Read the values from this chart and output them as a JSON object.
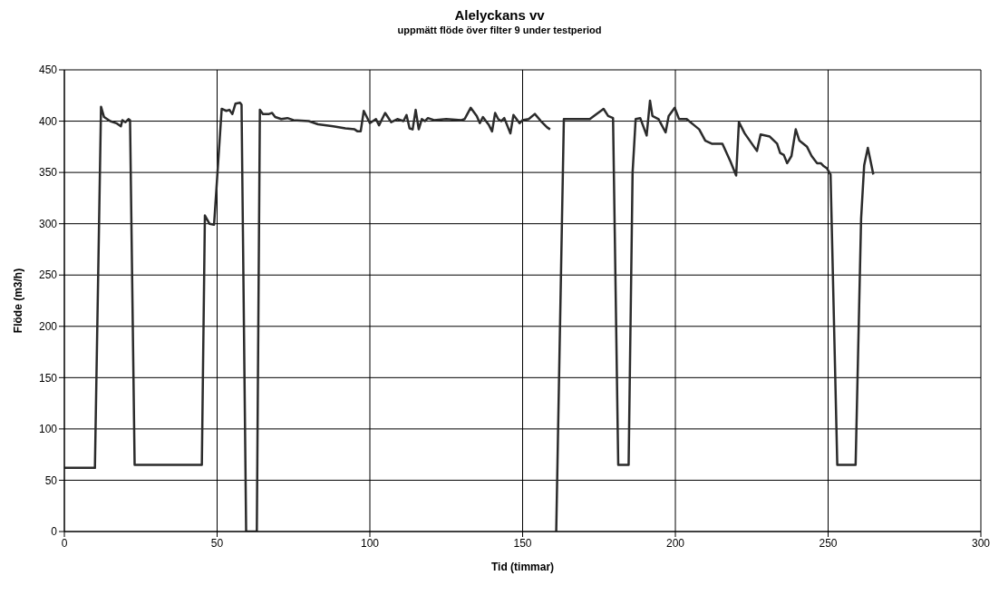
{
  "chart_data": {
    "type": "line",
    "title": "Alelyckans vv",
    "subtitle": "uppmätt flöde över filter 9 under testperiod",
    "xlabel": "Tid (timmar)",
    "ylabel": "Flöde (m3/h)",
    "xlim": [
      0,
      300
    ],
    "xticks": [
      0,
      50,
      100,
      150,
      200,
      250,
      300
    ],
    "ylim": [
      0,
      450
    ],
    "yticks": [
      0,
      50,
      100,
      150,
      200,
      250,
      300,
      350,
      400,
      450
    ],
    "grid": true,
    "series": [
      {
        "color": "#2b2b2b",
        "x": [
          0,
          10,
          12,
          13,
          15,
          17,
          18.5,
          19,
          20,
          21,
          21.5,
          23,
          45,
          46,
          47.5,
          49,
          51.5,
          53,
          54,
          55,
          56,
          57.5,
          58,
          59.5,
          63,
          64,
          65,
          67,
          68,
          69,
          71,
          73,
          75,
          80,
          83,
          88,
          92,
          95,
          96,
          97,
          98,
          100,
          102,
          103,
          105,
          107,
          109,
          111,
          112,
          113,
          114,
          115,
          116,
          117,
          118,
          119,
          121,
          125,
          130,
          131,
          133,
          135,
          136,
          137,
          139,
          140,
          141,
          142,
          143,
          144,
          146,
          147,
          149,
          150,
          152,
          154,
          156,
          158,
          159
        ],
        "values": [
          62,
          62,
          414,
          404,
          400,
          398,
          395,
          401,
          399,
          402,
          401,
          65,
          65,
          308,
          300,
          299,
          412,
          410,
          411,
          407,
          417,
          418,
          416,
          0,
          0,
          411,
          407,
          407,
          408,
          404,
          402,
          403,
          401,
          400,
          397,
          395,
          393,
          392,
          390,
          390,
          410,
          398,
          402,
          396,
          408,
          399,
          402,
          400,
          406,
          393,
          392,
          411,
          392,
          402,
          400,
          403,
          401,
          402,
          401,
          402,
          413,
          405,
          398,
          404,
          396,
          390,
          408,
          402,
          400,
          403,
          388,
          406,
          398,
          401,
          402,
          407,
          400,
          394,
          392
        ]
      },
      {
        "color": "#2b2b2b",
        "x": [
          161,
          163.5,
          172,
          176.5,
          178,
          179.6,
          181.3,
          184.7,
          186,
          187,
          188.5,
          190.6,
          191.7,
          192.5,
          194.5,
          196.8,
          197.8,
          199.8,
          201.2,
          203.7,
          207.8,
          209.8,
          211.9,
          215.4,
          218,
          219.9,
          220.8,
          222.7,
          226.7,
          227.9,
          230.9,
          233.3,
          234.3,
          235.5,
          236.6,
          238,
          239.4,
          240.6,
          243.1,
          244.6,
          246.4,
          247.6,
          248.6,
          249.6,
          250.8,
          253,
          259,
          260.8,
          261.8,
          263,
          264.8
        ],
        "values": [
          0,
          402,
          402,
          412,
          405,
          403,
          65,
          65,
          350,
          402,
          403,
          386,
          420,
          405,
          402,
          389,
          405,
          413,
          402,
          402,
          392,
          381,
          378,
          378,
          361,
          347,
          399,
          388,
          371,
          387,
          385,
          378,
          369,
          367,
          359,
          366,
          392,
          381,
          375,
          366,
          359,
          359,
          356,
          354,
          348,
          65,
          65,
          305,
          357,
          374,
          348
        ]
      }
    ]
  }
}
